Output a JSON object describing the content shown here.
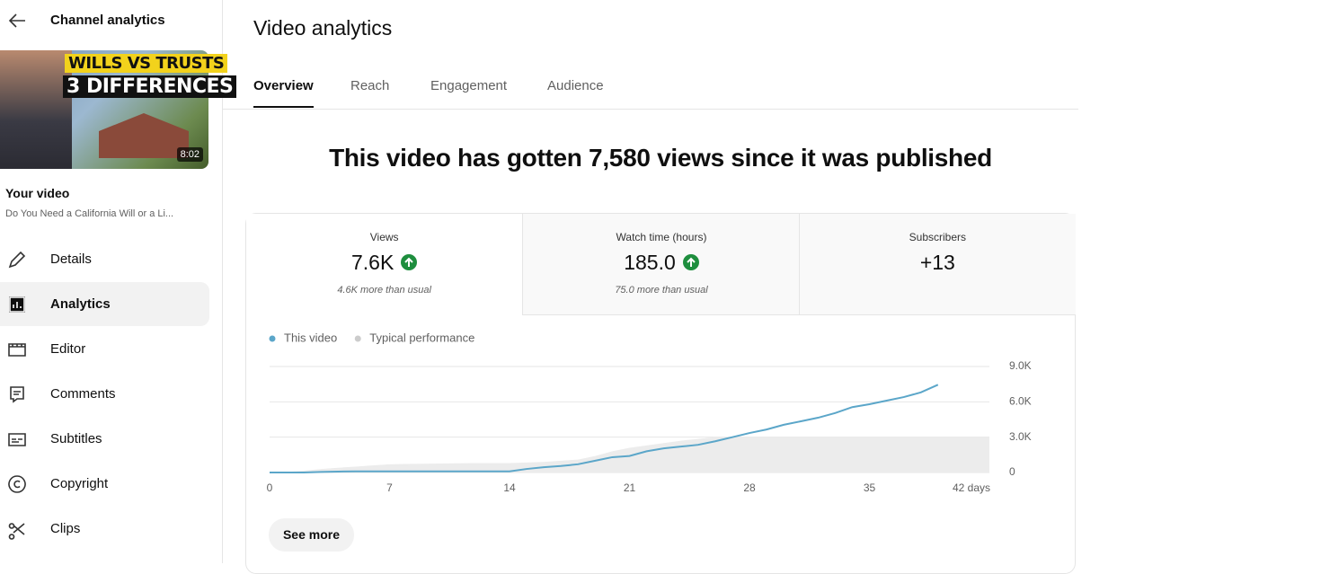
{
  "sidebar": {
    "back_title": "Channel analytics",
    "thumbnail": {
      "line1": "WILLS VS TRUSTS",
      "line2": "3 DIFFERENCES",
      "duration": "8:02"
    },
    "your_video": "Your video",
    "video_title": "Do You Need a California Will or a Li...",
    "active_index": 1,
    "nav": [
      "Details",
      "Analytics",
      "Editor",
      "Comments",
      "Subtitles",
      "Copyright",
      "Clips"
    ]
  },
  "main": {
    "title": "Video analytics",
    "tabs": [
      "Overview",
      "Reach",
      "Engagement",
      "Audience"
    ],
    "active_tab": 0,
    "headline": "This video has gotten 7,580 views since it was published",
    "metrics": [
      {
        "label": "Views",
        "value": "7.6K",
        "note": "4.6K more than usual"
      },
      {
        "label": "Watch time (hours)",
        "value": "185.0",
        "note": "75.0 more than usual"
      },
      {
        "label": "Subscribers",
        "value": "+13"
      }
    ],
    "see_more": "See more"
  },
  "chart_data": {
    "type": "line",
    "x": [
      0,
      1,
      2,
      3,
      4,
      5,
      6,
      7,
      8,
      9,
      10,
      11,
      12,
      13,
      14,
      15,
      16,
      17,
      18,
      19,
      20,
      21,
      22,
      23,
      24,
      25,
      26,
      27,
      28,
      29,
      30,
      31,
      32,
      33,
      34,
      35,
      36,
      37,
      38,
      39,
      40,
      41,
      42
    ],
    "series": [
      {
        "name": "This video",
        "color": "#5ba6c9",
        "values": [
          0,
          0,
          0,
          50,
          80,
          100,
          100,
          100,
          100,
          100,
          100,
          100,
          100,
          100,
          100,
          300,
          450,
          550,
          700,
          1000,
          1300,
          1400,
          1800,
          2050,
          2200,
          2350,
          2650,
          3000,
          3350,
          3650,
          4050,
          4350,
          4650,
          5050,
          5550,
          5800,
          6100,
          6400,
          6800,
          7450,
          null,
          null,
          null
        ]
      },
      {
        "name": "Typical performance",
        "color": "#cccccc",
        "area": true,
        "values": [
          0,
          50,
          150,
          300,
          400,
          500,
          600,
          700,
          720,
          740,
          760,
          780,
          800,
          800,
          800,
          850,
          900,
          1000,
          1100,
          1400,
          1800,
          2100,
          2300,
          2500,
          2700,
          2850,
          3000,
          3000,
          3000,
          3000,
          3000,
          3000,
          3000,
          3000,
          3000,
          3000,
          3000,
          3000,
          3000,
          3000,
          3000,
          3000,
          3000
        ]
      }
    ],
    "xlim": [
      0,
      42
    ],
    "xticks": [
      0,
      7,
      14,
      21,
      28,
      35,
      {
        "value": 42,
        "label": "42 days"
      }
    ],
    "ylim": [
      0,
      9000
    ],
    "yticks": [
      0,
      {
        "value": 3000,
        "label": "3.0K"
      },
      {
        "value": 6000,
        "label": "6.0K"
      },
      {
        "value": 9000,
        "label": "9.0K"
      }
    ],
    "grid": true
  }
}
